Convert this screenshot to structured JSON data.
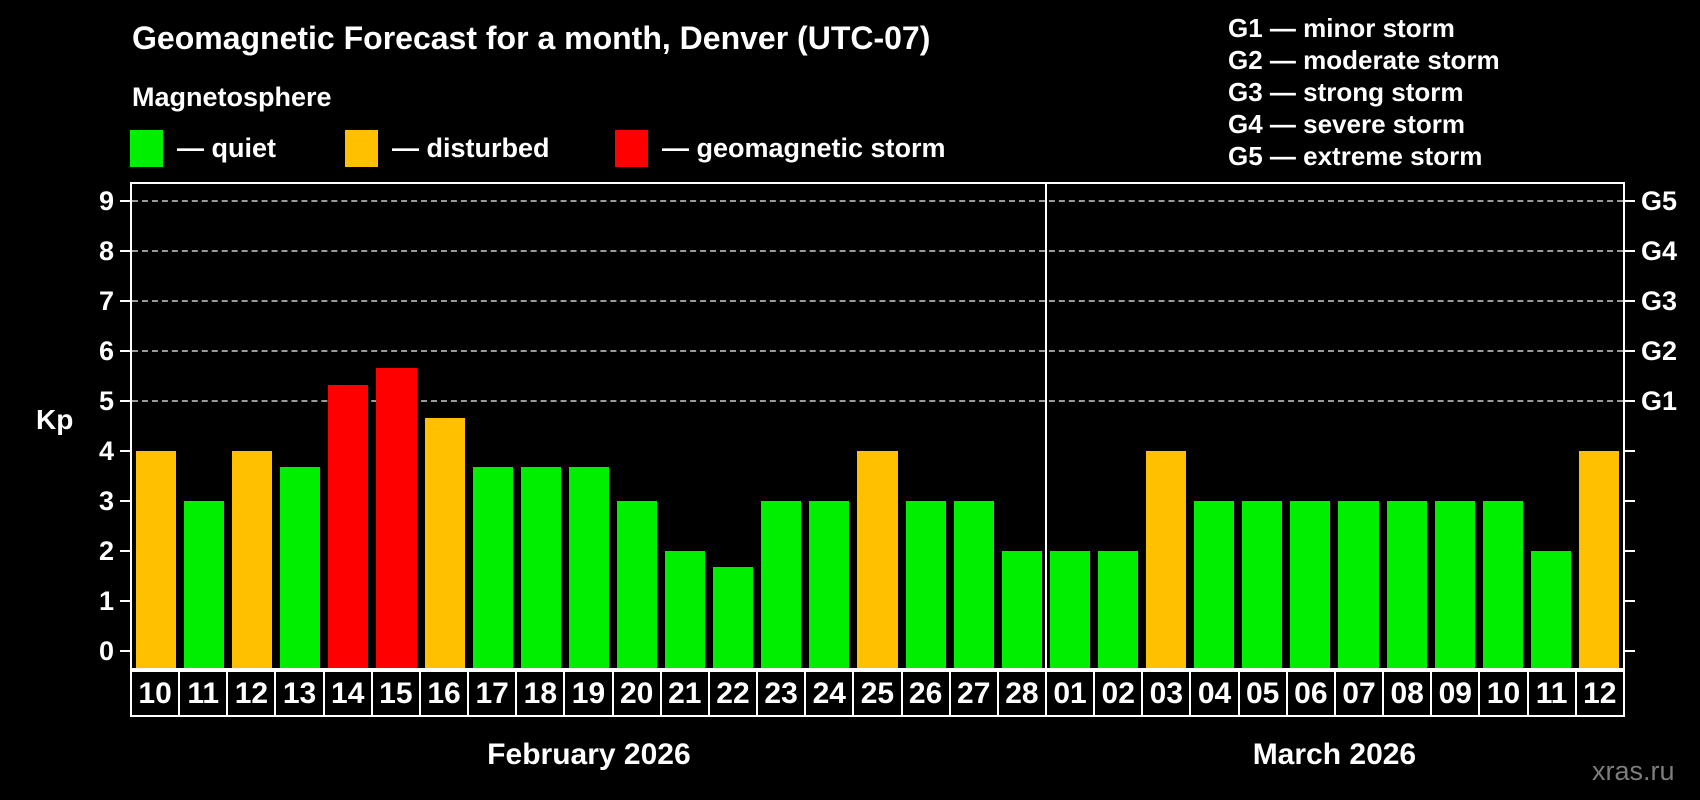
{
  "header": {
    "title": "Geomagnetic Forecast for a month, Denver (UTC-07)",
    "subtitle": "Magnetosphere"
  },
  "legend": {
    "items": [
      {
        "key": "quiet",
        "label": "— quiet",
        "color": "#00ee00"
      },
      {
        "key": "disturbed",
        "label": "— disturbed",
        "color": "#ffc000"
      },
      {
        "key": "storm",
        "label": "— geomagnetic storm",
        "color": "#ff0000"
      }
    ]
  },
  "g_scale_legend": {
    "items": [
      {
        "code": "G1",
        "label": "G1 — minor storm"
      },
      {
        "code": "G2",
        "label": "G2 — moderate storm"
      },
      {
        "code": "G3",
        "label": "G3 — strong storm"
      },
      {
        "code": "G4",
        "label": "G4 — severe storm"
      },
      {
        "code": "G5",
        "label": "G5 — extreme storm"
      }
    ]
  },
  "watermark": "xras.ru",
  "chart_data": {
    "type": "bar",
    "title": "Geomagnetic Forecast for a month, Denver (UTC-07)",
    "subtitle": "Magnetosphere",
    "ylabel": "Kp",
    "ylim": [
      -0.35,
      9.35
    ],
    "yticks": [
      0,
      1,
      2,
      3,
      4,
      5,
      6,
      7,
      8,
      9
    ],
    "grid_kp": [
      5,
      6,
      7,
      8,
      9
    ],
    "grid_style": "dashed",
    "legend_position": "top",
    "right_axis_labels": [
      {
        "label": "G1",
        "kp": 5
      },
      {
        "label": "G2",
        "kp": 6
      },
      {
        "label": "G3",
        "kp": 7
      },
      {
        "label": "G4",
        "kp": 8
      },
      {
        "label": "G5",
        "kp": 9
      }
    ],
    "categories": [
      "10",
      "11",
      "12",
      "13",
      "14",
      "15",
      "16",
      "17",
      "18",
      "19",
      "20",
      "21",
      "22",
      "23",
      "24",
      "25",
      "26",
      "27",
      "28",
      "01",
      "02",
      "03",
      "04",
      "05",
      "06",
      "07",
      "08",
      "09",
      "10",
      "11",
      "12"
    ],
    "series": [
      {
        "name": "Kp forecast",
        "values": [
          4.0,
          3.0,
          4.0,
          3.67,
          5.33,
          5.67,
          4.67,
          3.67,
          3.67,
          3.67,
          3.0,
          2.0,
          1.67,
          3.0,
          3.0,
          4.0,
          3.0,
          3.0,
          2.0,
          2.0,
          2.0,
          4.0,
          3.0,
          3.0,
          3.0,
          3.0,
          3.0,
          3.0,
          3.0,
          2.0,
          4.0
        ]
      }
    ],
    "statuses": [
      "disturbed",
      "quiet",
      "disturbed",
      "quiet",
      "storm",
      "storm",
      "disturbed",
      "quiet",
      "quiet",
      "quiet",
      "quiet",
      "quiet",
      "quiet",
      "quiet",
      "quiet",
      "disturbed",
      "quiet",
      "quiet",
      "quiet",
      "quiet",
      "quiet",
      "disturbed",
      "quiet",
      "quiet",
      "quiet",
      "quiet",
      "quiet",
      "quiet",
      "quiet",
      "quiet",
      "disturbed"
    ],
    "status_colors": {
      "quiet": "#00ee00",
      "disturbed": "#ffc000",
      "storm": "#ff0000"
    },
    "months": [
      {
        "label": "February 2026",
        "days": 19
      },
      {
        "label": "March 2026",
        "days": 12
      }
    ],
    "divider_after_index": 18
  }
}
